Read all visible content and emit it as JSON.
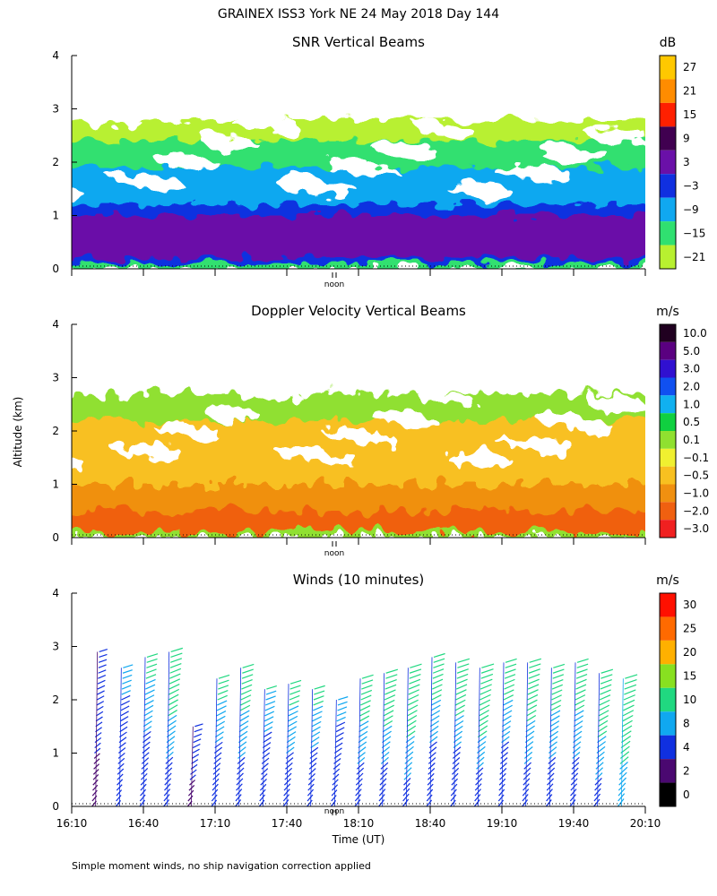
{
  "figure": {
    "title": "GRAINEX ISS3 York NE  24 May 2018 Day 144",
    "ylabel": "Altitude (km)",
    "xlabel": "Time (UT)",
    "noon_label": "noon",
    "footnote": "Simple moment winds, no ship navigation correction applied"
  },
  "chart_data": [
    {
      "type": "heatmap",
      "title": "SNR Vertical Beams",
      "colorbar_units": "dB",
      "ylim": [
        0,
        4
      ],
      "y_ticks": [
        "0",
        "1",
        "2",
        "3",
        "4"
      ],
      "colorbar_labels": [
        "27",
        "21",
        "15",
        "9",
        "3",
        "−3",
        "−9",
        "−15",
        "−21"
      ],
      "colorbar_colors": [
        "#ffc800",
        "#ff8c00",
        "#ff2000",
        "#400050",
        "#6a10a8",
        "#1030e0",
        "#10a8f0",
        "#30e070",
        "#b8f030"
      ],
      "layers": [
        {
          "level": "−21",
          "altitude_km": [
            0.0,
            2.8
          ]
        },
        {
          "level": "−15",
          "altitude_km": [
            0.0,
            2.4
          ]
        },
        {
          "level": "−9",
          "altitude_km": [
            0.1,
            1.9
          ]
        },
        {
          "level": "−3",
          "altitude_km": [
            0.1,
            1.2
          ]
        },
        {
          "level": "3",
          "altitude_km": [
            0.2,
            1.0
          ]
        }
      ]
    },
    {
      "type": "heatmap",
      "title": "Doppler Velocity Vertical Beams",
      "colorbar_units": "m/s",
      "ylim": [
        0,
        4
      ],
      "y_ticks": [
        "0",
        "1",
        "2",
        "3",
        "4"
      ],
      "colorbar_labels": [
        "10.0",
        "5.0",
        "3.0",
        "2.0",
        "1.0",
        "0.5",
        "0.1",
        "−0.1",
        "−0.5",
        "−1.0",
        "−2.0",
        "−3.0"
      ],
      "colorbar_colors": [
        "#200020",
        "#5a0080",
        "#3010d0",
        "#1050f0",
        "#10b0f0",
        "#10d040",
        "#90e030",
        "#f0f030",
        "#f8c020",
        "#f09010",
        "#f06010",
        "#f02020"
      ],
      "layers": [
        {
          "level": "0.1",
          "altitude_km": [
            0.0,
            2.7
          ]
        },
        {
          "level": "−0.5",
          "altitude_km": [
            0.1,
            2.2
          ]
        },
        {
          "level": "−1.0",
          "altitude_km": [
            0.1,
            1.0
          ]
        },
        {
          "level": "−2.0",
          "altitude_km": [
            0.1,
            0.5
          ]
        }
      ]
    },
    {
      "type": "scatter",
      "title": "Winds (10 minutes)",
      "colorbar_units": "m/s",
      "ylim": [
        0,
        4
      ],
      "y_ticks": [
        "0",
        "1",
        "2",
        "3",
        "4"
      ],
      "x_ticks": [
        "16:10",
        "16:40",
        "17:10",
        "17:40",
        "18:10",
        "18:40",
        "19:10",
        "19:40",
        "20:10"
      ],
      "xlim_hours": [
        16.1667,
        20.1667
      ],
      "colorbar_labels": [
        "30",
        "25",
        "20",
        "15",
        "10",
        "8",
        "4",
        "2",
        "0"
      ],
      "colorbar_colors": [
        "#ff1000",
        "#ff6a00",
        "#ffb000",
        "#88e020",
        "#20d880",
        "#10a8f0",
        "#1030e0",
        "#4a0870",
        "#000000"
      ],
      "profiles": [
        {
          "time": "16:20",
          "top_km": 2.9,
          "speed_low_ms": 3,
          "speed_high_ms": 6
        },
        {
          "time": "16:30",
          "top_km": 2.6,
          "speed_low_ms": 4,
          "speed_high_ms": 9
        },
        {
          "time": "16:40",
          "top_km": 2.8,
          "speed_low_ms": 5,
          "speed_high_ms": 11
        },
        {
          "time": "16:50",
          "top_km": 2.9,
          "speed_low_ms": 6,
          "speed_high_ms": 13
        },
        {
          "time": "17:00",
          "top_km": 1.5,
          "speed_low_ms": 3,
          "speed_high_ms": 6
        },
        {
          "time": "17:10",
          "top_km": 2.4,
          "speed_low_ms": 5,
          "speed_high_ms": 11
        },
        {
          "time": "17:20",
          "top_km": 2.6,
          "speed_low_ms": 6,
          "speed_high_ms": 12
        },
        {
          "time": "17:30",
          "top_km": 2.2,
          "speed_low_ms": 5,
          "speed_high_ms": 10
        },
        {
          "time": "17:40",
          "top_km": 2.3,
          "speed_low_ms": 6,
          "speed_high_ms": 11
        },
        {
          "time": "17:50",
          "top_km": 2.2,
          "speed_low_ms": 5,
          "speed_high_ms": 11
        },
        {
          "time": "18:00",
          "top_km": 2.0,
          "speed_low_ms": 4,
          "speed_high_ms": 9
        },
        {
          "time": "18:10",
          "top_km": 2.4,
          "speed_low_ms": 6,
          "speed_high_ms": 12
        },
        {
          "time": "18:20",
          "top_km": 2.5,
          "speed_low_ms": 6,
          "speed_high_ms": 13
        },
        {
          "time": "18:30",
          "top_km": 2.6,
          "speed_low_ms": 7,
          "speed_high_ms": 13
        },
        {
          "time": "18:40",
          "top_km": 2.8,
          "speed_low_ms": 5,
          "speed_high_ms": 12
        },
        {
          "time": "18:50",
          "top_km": 2.7,
          "speed_low_ms": 5,
          "speed_high_ms": 13
        },
        {
          "time": "19:00",
          "top_km": 2.6,
          "speed_low_ms": 6,
          "speed_high_ms": 14
        },
        {
          "time": "19:10",
          "top_km": 2.7,
          "speed_low_ms": 5,
          "speed_high_ms": 12
        },
        {
          "time": "19:20",
          "top_km": 2.7,
          "speed_low_ms": 6,
          "speed_high_ms": 13
        },
        {
          "time": "19:30",
          "top_km": 2.6,
          "speed_low_ms": 6,
          "speed_high_ms": 12
        },
        {
          "time": "19:40",
          "top_km": 2.7,
          "speed_low_ms": 6,
          "speed_high_ms": 12
        },
        {
          "time": "19:50",
          "top_km": 2.5,
          "speed_low_ms": 7,
          "speed_high_ms": 13
        },
        {
          "time": "20:00",
          "top_km": 2.4,
          "speed_low_ms": 8,
          "speed_high_ms": 14
        }
      ]
    }
  ]
}
